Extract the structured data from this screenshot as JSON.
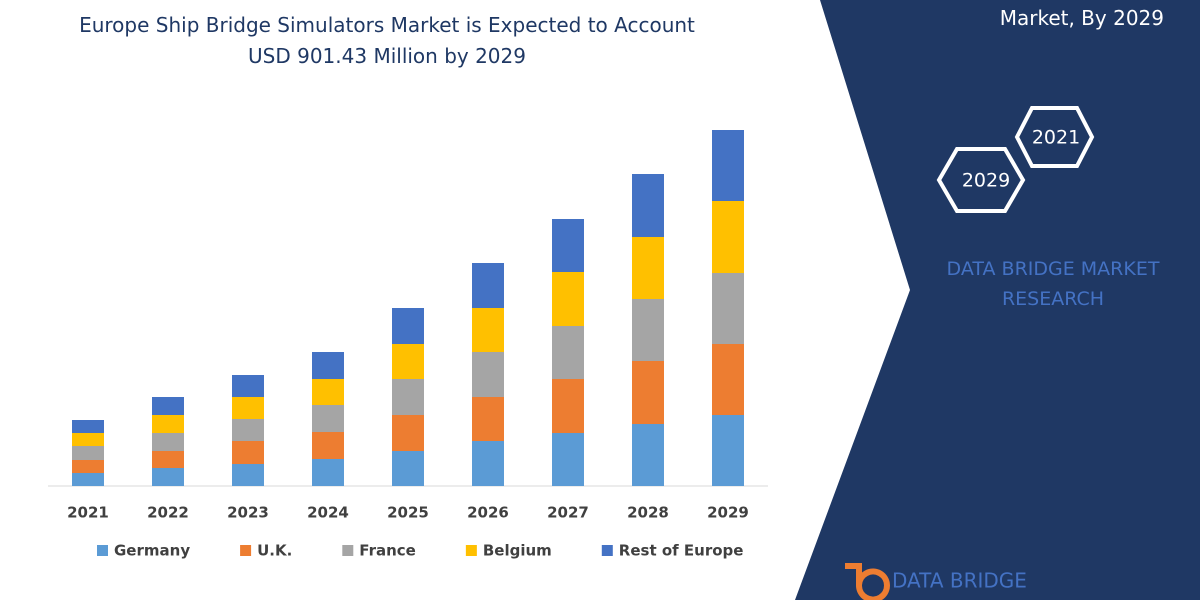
{
  "chart_data": {
    "type": "bar",
    "stacked": true,
    "title": "Europe Ship Bridge Simulators Market is Expected to Account USD 901.43 Million by 2029",
    "categories": [
      "2021",
      "2022",
      "2023",
      "2024",
      "2025",
      "2026",
      "2027",
      "2028",
      "2029"
    ],
    "series": [
      {
        "name": "Germany",
        "color": "#5b9bd5",
        "values": [
          13,
          18,
          22,
          27,
          35,
          45,
          53,
          62,
          71
        ]
      },
      {
        "name": "U.K.",
        "color": "#ed7d31",
        "values": [
          13,
          17,
          23,
          27,
          36,
          44,
          54,
          63,
          71
        ]
      },
      {
        "name": "France",
        "color": "#a5a5a5",
        "values": [
          14,
          18,
          22,
          27,
          36,
          45,
          53,
          62,
          71
        ]
      },
      {
        "name": "Belgium",
        "color": "#ffc000",
        "values": [
          13,
          18,
          22,
          26,
          35,
          44,
          54,
          62,
          72
        ]
      },
      {
        "name": "Rest of Europe",
        "color": "#4472c4",
        "values": [
          13,
          18,
          22,
          27,
          36,
          45,
          53,
          63,
          71
        ]
      }
    ],
    "legend": "bottom"
  },
  "side_panel": {
    "heading": "Market, By 2029",
    "hexagons": [
      "2021",
      "2029"
    ],
    "brand": "DATA BRIDGE MARKET RESEARCH"
  },
  "logo": "DATA BRIDGE"
}
